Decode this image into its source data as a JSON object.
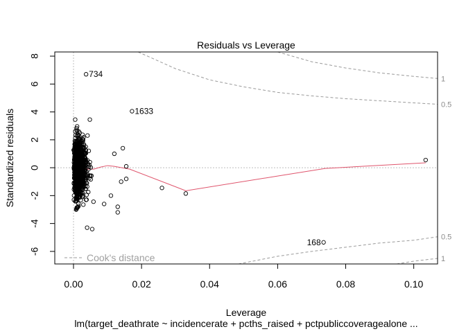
{
  "chart_data": {
    "type": "scatter",
    "title": "Residuals vs Leverage",
    "xlabel": "Leverage",
    "ylabel": "Standardized residuals",
    "subtitle": "lm(target_deathrate ~ incidencerate + pcths_raised + pctpubliccoveragealone ...",
    "xlim": [
      -0.0055,
      0.107
    ],
    "ylim": [
      -6.9,
      8.3
    ],
    "x_ticks": [
      0.0,
      0.02,
      0.04,
      0.06,
      0.08,
      0.1
    ],
    "x_tick_labels": [
      "0.00",
      "0.02",
      "0.04",
      "0.06",
      "0.08",
      "0.10"
    ],
    "y_ticks": [
      -6,
      -4,
      -2,
      0,
      2,
      4,
      6,
      8
    ],
    "y_tick_labels": [
      "-6",
      "-4",
      "-2",
      "0",
      "2",
      "4",
      "6",
      "8"
    ],
    "legend": {
      "label": "Cook's distance",
      "position": "bottom-left"
    },
    "colors": {
      "points": "#000000",
      "smoother": "#DF536B",
      "cook": "#999999",
      "reference": "#bebebe"
    },
    "labeled_points": [
      {
        "label": "734",
        "x": 0.0037,
        "y": 6.7
      },
      {
        "label": "1633",
        "x": 0.0172,
        "y": 4.05
      },
      {
        "label": "168",
        "x": 0.0735,
        "y": -5.35
      }
    ],
    "outer_points": [
      {
        "x": 0.1035,
        "y": 0.55
      },
      {
        "x": 0.033,
        "y": -1.85
      },
      {
        "x": 0.026,
        "y": -1.45
      },
      {
        "x": 0.004,
        "y": -4.3
      },
      {
        "x": 0.0055,
        "y": -4.4
      },
      {
        "x": 0.013,
        "y": -2.8
      },
      {
        "x": 0.013,
        "y": -3.2
      },
      {
        "x": 0.0145,
        "y": 1.4
      },
      {
        "x": 0.0155,
        "y": 0.1
      },
      {
        "x": 0.0155,
        "y": -0.8
      },
      {
        "x": 0.014,
        "y": -1.0
      },
      {
        "x": 0.0005,
        "y": 3.45
      },
      {
        "x": 0.0048,
        "y": 3.45
      },
      {
        "x": 0.012,
        "y": 1.0
      },
      {
        "x": 0.011,
        "y": -2.0
      },
      {
        "x": 0.009,
        "y": -2.6
      }
    ],
    "cluster": {
      "n": 1000,
      "x_center": 0.002,
      "x_spread": 0.0035,
      "x_max": 0.011,
      "y_sd": 1.0,
      "y_min": -3.0,
      "y_max": 3.0
    },
    "smoother": {
      "x": [
        0.0002,
        0.002,
        0.004,
        0.006,
        0.008,
        0.01,
        0.012,
        0.0165,
        0.033,
        0.074,
        0.1035
      ],
      "y": [
        0.15,
        0.0,
        -0.1,
        -0.1,
        0.05,
        0.15,
        0.1,
        -0.1,
        -1.65,
        -0.05,
        0.35
      ]
    },
    "cook_contours": [
      {
        "label": "0.5",
        "side": "upper",
        "x": [
          0.019,
          0.03,
          0.04,
          0.05,
          0.06,
          0.07,
          0.08,
          0.09,
          0.1,
          0.107
        ],
        "y": [
          8.3,
          7.1,
          6.3,
          5.8,
          5.4,
          5.15,
          4.95,
          4.8,
          4.65,
          4.55
        ]
      },
      {
        "label": "1",
        "side": "upper",
        "x": [
          0.06,
          0.07,
          0.08,
          0.09,
          0.1,
          0.107
        ],
        "y": [
          8.3,
          7.6,
          7.15,
          6.8,
          6.55,
          6.4
        ]
      },
      {
        "label": "0.5",
        "side": "lower",
        "x": [
          0.0485,
          0.06,
          0.07,
          0.08,
          0.09,
          0.1,
          0.107
        ],
        "y": [
          -6.9,
          -6.35,
          -6.0,
          -5.7,
          -5.4,
          -5.2,
          -4.95
        ]
      },
      {
        "label": "1",
        "side": "lower",
        "x": [
          0.095,
          0.1,
          0.107
        ],
        "y": [
          -6.9,
          -6.7,
          -6.5
        ]
      }
    ]
  }
}
